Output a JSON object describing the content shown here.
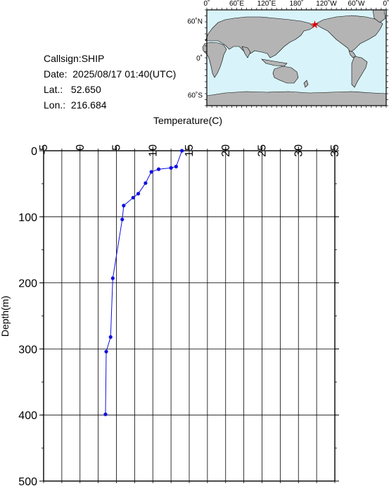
{
  "station": {
    "callsign_label": "Callsign:",
    "callsign": "SHIP",
    "date_label": "Date:",
    "date": "2025/08/17 01:40(UTC)",
    "lat_label": "Lat.:",
    "lat": "52.650",
    "lon_label": "Lon.:",
    "lon": "216.684"
  },
  "map": {
    "top_labels": [
      "0˚",
      "60˚E",
      "120˚E",
      "180˚",
      "120˚W",
      "60˚W",
      "0˚"
    ],
    "left_labels": [
      "60˚N",
      "0˚",
      "60˚S"
    ],
    "lon_range": [
      0,
      360
    ],
    "lat_range": [
      -78,
      78
    ],
    "marker": {
      "lon": 216.684,
      "lat": 52.65,
      "symbol": "★",
      "color": "#e00000"
    },
    "ocean_color": "#d8f4fa",
    "land_color": "#b4b4b4"
  },
  "chart_data": {
    "type": "line",
    "xlabel": "Temperature(C)",
    "ylabel": "Depth(m)",
    "xlim": [
      -5,
      35
    ],
    "ylim": [
      0,
      500
    ],
    "y_inverted": true,
    "xticks": [
      -5,
      0,
      5,
      10,
      15,
      20,
      25,
      30,
      35
    ],
    "yticks": [
      0,
      100,
      200,
      300,
      400,
      500
    ],
    "grid": true,
    "series": [
      {
        "color": "#1010e0",
        "points": [
          {
            "t": 14.0,
            "d": 0
          },
          {
            "t": 13.2,
            "d": 24
          },
          {
            "t": 12.5,
            "d": 26
          },
          {
            "t": 10.8,
            "d": 28
          },
          {
            "t": 9.8,
            "d": 32
          },
          {
            "t": 9.0,
            "d": 49
          },
          {
            "t": 8.0,
            "d": 65
          },
          {
            "t": 7.3,
            "d": 71
          },
          {
            "t": 6.0,
            "d": 83
          },
          {
            "t": 5.8,
            "d": 104
          },
          {
            "t": 4.5,
            "d": 193
          },
          {
            "t": 4.2,
            "d": 282
          },
          {
            "t": 3.6,
            "d": 304
          },
          {
            "t": 3.5,
            "d": 399
          }
        ]
      }
    ]
  }
}
